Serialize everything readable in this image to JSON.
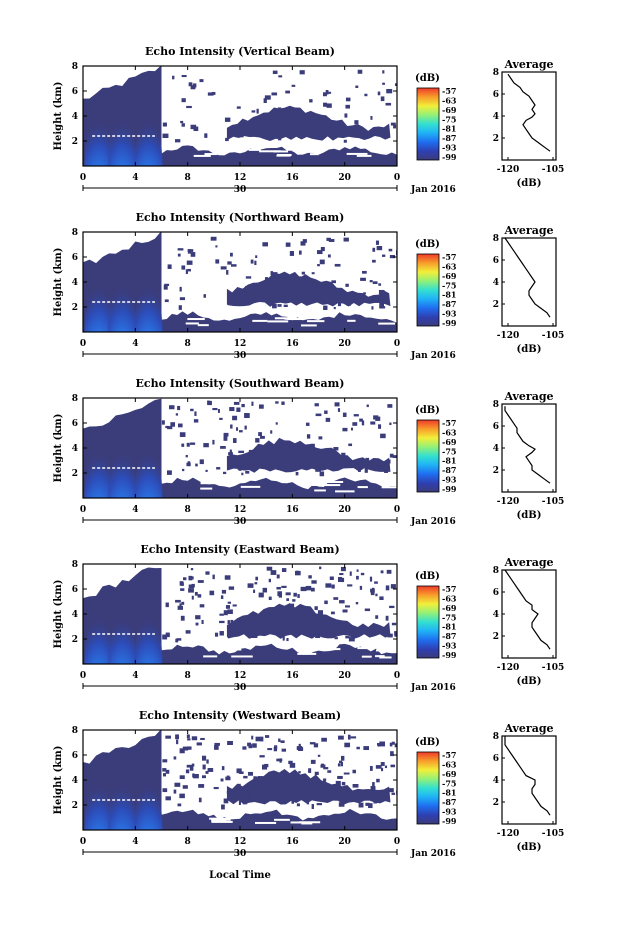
{
  "figure": {
    "bottom_xlabel": "Local Time",
    "date_label": "Jan 2016",
    "day_label": "30",
    "shared_x_ticks": [
      "0",
      "4",
      "8",
      "12",
      "16",
      "20",
      "0"
    ]
  },
  "chart_data": [
    {
      "type": "heatmap",
      "title": "Echo Intensity (Vertical Beam)",
      "ylabel": "Height (km)",
      "xlim_hours": [
        0,
        24
      ],
      "ylim_km": [
        0,
        8
      ],
      "y_ticks": [
        "2",
        "4",
        "6",
        "8"
      ],
      "x_ticks": [
        "0",
        "4",
        "8",
        "12",
        "16",
        "20",
        "0"
      ],
      "colorbar": {
        "unit": "(dB)",
        "ticks": [
          "-57",
          "-63",
          "-69",
          "-75",
          "-81",
          "-87",
          "-93",
          "-99"
        ]
      },
      "average_profile": {
        "title": "Average",
        "xlabel": "(dB)",
        "x_ticks": [
          "-120",
          "-105"
        ],
        "y_ticks": [
          "2",
          "4",
          "6",
          "8"
        ],
        "xlim": [
          -122,
          -104
        ],
        "ylim": [
          0,
          8
        ],
        "points": [
          [
            -106,
            0.8
          ],
          [
            -108,
            1.2
          ],
          [
            -110,
            1.6
          ],
          [
            -112,
            2.0
          ],
          [
            -113,
            2.4
          ],
          [
            -114,
            2.8
          ],
          [
            -115,
            3.2
          ],
          [
            -114,
            3.6
          ],
          [
            -112,
            3.9
          ],
          [
            -111,
            4.2
          ],
          [
            -112,
            4.6
          ],
          [
            -111,
            5.0
          ],
          [
            -112,
            5.4
          ],
          [
            -113,
            5.8
          ],
          [
            -115,
            6.2
          ],
          [
            -116,
            6.6
          ],
          [
            -118,
            7.0
          ],
          [
            -119,
            7.4
          ],
          [
            -120,
            7.8
          ]
        ]
      }
    },
    {
      "type": "heatmap",
      "title": "Echo Intensity (Northward Beam)",
      "ylabel": "Height (km)",
      "xlim_hours": [
        0,
        24
      ],
      "ylim_km": [
        0,
        8
      ],
      "y_ticks": [
        "2",
        "4",
        "6",
        "8"
      ],
      "x_ticks": [
        "0",
        "4",
        "8",
        "12",
        "16",
        "20",
        "0"
      ],
      "colorbar": {
        "unit": "(dB)",
        "ticks": [
          "-57",
          "-63",
          "-69",
          "-75",
          "-81",
          "-87",
          "-93",
          "-99"
        ]
      },
      "average_profile": {
        "title": "Average",
        "xlabel": "(dB)",
        "x_ticks": [
          "-120",
          "-105"
        ],
        "y_ticks": [
          "2",
          "4",
          "6",
          "8"
        ],
        "xlim": [
          -122,
          -104
        ],
        "ylim": [
          0,
          8
        ],
        "points": [
          [
            -106,
            0.8
          ],
          [
            -107,
            1.2
          ],
          [
            -109,
            1.6
          ],
          [
            -111,
            2.0
          ],
          [
            -112,
            2.4
          ],
          [
            -113,
            2.8
          ],
          [
            -113,
            3.2
          ],
          [
            -112,
            3.6
          ],
          [
            -111,
            4.0
          ],
          [
            -112,
            4.4
          ],
          [
            -113,
            4.8
          ],
          [
            -114,
            5.2
          ],
          [
            -115,
            5.6
          ],
          [
            -116,
            6.0
          ],
          [
            -117,
            6.4
          ],
          [
            -118,
            6.8
          ],
          [
            -119,
            7.2
          ],
          [
            -120,
            7.6
          ],
          [
            -121,
            8.0
          ]
        ]
      }
    },
    {
      "type": "heatmap",
      "title": "Echo Intensity (Southward Beam)",
      "ylabel": "Height (km)",
      "xlim_hours": [
        0,
        24
      ],
      "ylim_km": [
        0,
        8
      ],
      "y_ticks": [
        "2",
        "4",
        "6",
        "8"
      ],
      "x_ticks": [
        "0",
        "4",
        "8",
        "12",
        "16",
        "20",
        "0"
      ],
      "colorbar": {
        "unit": "(dB)",
        "ticks": [
          "-57",
          "-63",
          "-69",
          "-75",
          "-81",
          "-87",
          "-93",
          "-99"
        ]
      },
      "average_profile": {
        "title": "Average",
        "xlabel": "(dB)",
        "x_ticks": [
          "-120",
          "-105"
        ],
        "y_ticks": [
          "2",
          "4",
          "6",
          "8"
        ],
        "xlim": [
          -122,
          -104
        ],
        "ylim": [
          0,
          8
        ],
        "points": [
          [
            -106,
            0.8
          ],
          [
            -108,
            1.2
          ],
          [
            -110,
            1.6
          ],
          [
            -112,
            2.0
          ],
          [
            -112,
            2.4
          ],
          [
            -113,
            2.8
          ],
          [
            -114,
            3.2
          ],
          [
            -112,
            3.6
          ],
          [
            -111,
            3.9
          ],
          [
            -113,
            4.2
          ],
          [
            -115,
            4.6
          ],
          [
            -116,
            5.0
          ],
          [
            -117,
            5.4
          ],
          [
            -117,
            5.8
          ],
          [
            -118,
            6.2
          ],
          [
            -119,
            6.6
          ],
          [
            -120,
            7.0
          ],
          [
            -121,
            7.4
          ],
          [
            -121,
            7.8
          ]
        ]
      }
    },
    {
      "type": "heatmap",
      "title": "Echo Intensity (Eastward Beam)",
      "ylabel": "Height (km)",
      "xlim_hours": [
        0,
        24
      ],
      "ylim_km": [
        0,
        8
      ],
      "y_ticks": [
        "2",
        "4",
        "6",
        "8"
      ],
      "x_ticks": [
        "0",
        "4",
        "8",
        "12",
        "16",
        "20",
        "0"
      ],
      "colorbar": {
        "unit": "(dB)",
        "ticks": [
          "-57",
          "-63",
          "-69",
          "-75",
          "-81",
          "-87",
          "-93",
          "-99"
        ]
      },
      "average_profile": {
        "title": "Average",
        "xlabel": "(dB)",
        "x_ticks": [
          "-120",
          "-105"
        ],
        "y_ticks": [
          "2",
          "4",
          "6",
          "8"
        ],
        "xlim": [
          -122,
          -104
        ],
        "ylim": [
          0,
          8
        ],
        "points": [
          [
            -106,
            0.8
          ],
          [
            -107,
            1.2
          ],
          [
            -109,
            1.6
          ],
          [
            -110,
            2.0
          ],
          [
            -111,
            2.4
          ],
          [
            -112,
            2.8
          ],
          [
            -112,
            3.2
          ],
          [
            -111,
            3.6
          ],
          [
            -110,
            4.0
          ],
          [
            -112,
            4.4
          ],
          [
            -112,
            4.8
          ],
          [
            -114,
            5.2
          ],
          [
            -115,
            5.6
          ],
          [
            -116,
            6.0
          ],
          [
            -117,
            6.4
          ],
          [
            -118,
            6.8
          ],
          [
            -119,
            7.2
          ],
          [
            -120,
            7.6
          ],
          [
            -121,
            8.0
          ]
        ]
      }
    },
    {
      "type": "heatmap",
      "title": "Echo Intensity (Westward Beam)",
      "ylabel": "Height (km)",
      "xlim_hours": [
        0,
        24
      ],
      "ylim_km": [
        0,
        8
      ],
      "y_ticks": [
        "2",
        "4",
        "6",
        "8"
      ],
      "x_ticks": [
        "0",
        "4",
        "8",
        "12",
        "16",
        "20",
        "0"
      ],
      "colorbar": {
        "unit": "(dB)",
        "ticks": [
          "-57",
          "-63",
          "-69",
          "-75",
          "-81",
          "-87",
          "-93",
          "-99"
        ]
      },
      "average_profile": {
        "title": "Average",
        "xlabel": "(dB)",
        "x_ticks": [
          "-120",
          "-105"
        ],
        "y_ticks": [
          "2",
          "4",
          "6",
          "8"
        ],
        "xlim": [
          -122,
          -104
        ],
        "ylim": [
          0,
          8
        ],
        "points": [
          [
            -106,
            0.8
          ],
          [
            -107,
            1.2
          ],
          [
            -109,
            1.6
          ],
          [
            -110,
            2.0
          ],
          [
            -111,
            2.4
          ],
          [
            -112,
            2.8
          ],
          [
            -112,
            3.2
          ],
          [
            -111,
            3.6
          ],
          [
            -111,
            4.0
          ],
          [
            -114,
            4.4
          ],
          [
            -115,
            4.8
          ],
          [
            -116,
            5.2
          ],
          [
            -117,
            5.6
          ],
          [
            -118,
            6.0
          ],
          [
            -119,
            6.4
          ],
          [
            -120,
            6.8
          ],
          [
            -121,
            7.2
          ],
          [
            -121,
            7.6
          ],
          [
            -121,
            8.0
          ]
        ]
      }
    }
  ]
}
